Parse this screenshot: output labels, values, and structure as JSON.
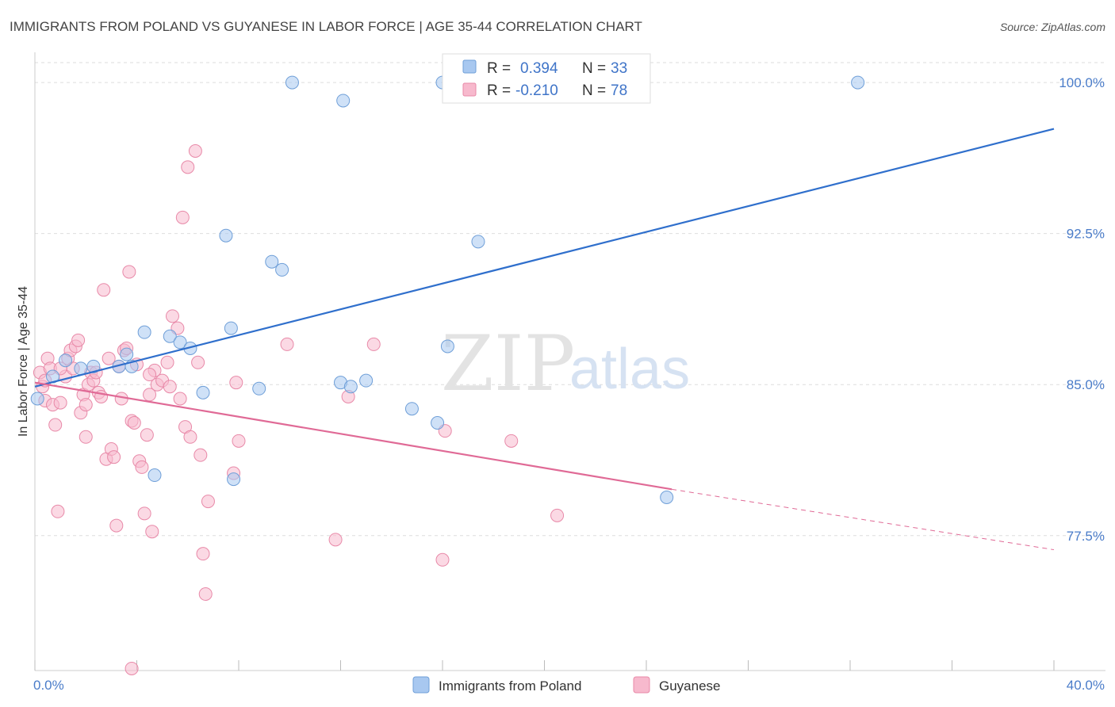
{
  "header": {
    "title": "IMMIGRANTS FROM POLAND VS GUYANESE IN LABOR FORCE | AGE 35-44 CORRELATION CHART",
    "source": "Source: ZipAtlas.com"
  },
  "watermark": {
    "zip": "ZIP",
    "atlas": "atlas"
  },
  "legend_box": {
    "rows": [
      {
        "r_label": "R =",
        "r_value": "0.394",
        "n_label": "N =",
        "n_value": "33"
      },
      {
        "r_label": "R =",
        "r_value": "-0.210",
        "n_label": "N =",
        "n_value": "78"
      }
    ]
  },
  "colors": {
    "poland_fill": "#a8c8f0",
    "poland_stroke": "#6f9fd8",
    "poland_line": "#2f6fcc",
    "guyanese_fill": "#f7b9cd",
    "guyanese_stroke": "#e889a8",
    "guyanese_line": "#e06a96"
  },
  "chart_data": {
    "type": "scatter",
    "title": "IMMIGRANTS FROM POLAND VS GUYANESE IN LABOR FORCE | AGE 35-44 CORRELATION CHART",
    "xlabel": "",
    "ylabel": "In Labor Force | Age 35-44",
    "xlim": [
      0,
      40
    ],
    "ylim": [
      70.8,
      101.5
    ],
    "x_tick_labels": [
      "0.0%",
      "40.0%"
    ],
    "y_ticks": [
      77.5,
      85.0,
      92.5,
      100.0
    ],
    "y_tick_labels": [
      "77.5%",
      "85.0%",
      "92.5%",
      "100.0%"
    ],
    "grid": "horizontal dashed",
    "legend_position": "bottom-center",
    "series": [
      {
        "name": "Immigrants from Poland",
        "color": "#a8c8f0",
        "points": [
          [
            0.1,
            84.3
          ],
          [
            0.7,
            85.4
          ],
          [
            1.2,
            86.2
          ],
          [
            1.8,
            85.8
          ],
          [
            2.3,
            85.9
          ],
          [
            3.3,
            85.9
          ],
          [
            3.6,
            86.5
          ],
          [
            3.8,
            85.9
          ],
          [
            4.3,
            87.6
          ],
          [
            4.7,
            80.5
          ],
          [
            5.3,
            87.4
          ],
          [
            5.7,
            87.1
          ],
          [
            6.1,
            86.8
          ],
          [
            6.6,
            84.6
          ],
          [
            7.5,
            92.4
          ],
          [
            7.8,
            80.3
          ],
          [
            7.7,
            87.8
          ],
          [
            8.8,
            84.8
          ],
          [
            9.3,
            91.1
          ],
          [
            9.7,
            90.7
          ],
          [
            10.1,
            100.0
          ],
          [
            12.0,
            85.1
          ],
          [
            12.1,
            99.1
          ],
          [
            12.4,
            84.9
          ],
          [
            13.0,
            85.2
          ],
          [
            14.8,
            83.8
          ],
          [
            15.8,
            83.1
          ],
          [
            16.0,
            100.0
          ],
          [
            16.2,
            86.9
          ],
          [
            17.0,
            100.0
          ],
          [
            17.4,
            92.1
          ],
          [
            24.8,
            79.4
          ],
          [
            32.3,
            100.0
          ]
        ]
      },
      {
        "name": "Guyanese",
        "color": "#f7b9cd",
        "points": [
          [
            0.2,
            85.6
          ],
          [
            0.3,
            84.9
          ],
          [
            0.4,
            84.2
          ],
          [
            0.5,
            86.3
          ],
          [
            0.6,
            85.8
          ],
          [
            0.7,
            84.0
          ],
          [
            0.8,
            83.0
          ],
          [
            0.9,
            78.7
          ],
          [
            1.0,
            84.1
          ],
          [
            1.2,
            85.4
          ],
          [
            1.3,
            86.3
          ],
          [
            1.4,
            86.7
          ],
          [
            1.5,
            85.8
          ],
          [
            1.6,
            86.9
          ],
          [
            1.7,
            87.2
          ],
          [
            1.8,
            83.6
          ],
          [
            1.9,
            84.5
          ],
          [
            2.0,
            82.4
          ],
          [
            2.1,
            85.0
          ],
          [
            2.2,
            85.6
          ],
          [
            2.3,
            85.2
          ],
          [
            2.4,
            85.6
          ],
          [
            2.5,
            84.6
          ],
          [
            2.6,
            84.4
          ],
          [
            2.7,
            89.7
          ],
          [
            2.8,
            81.3
          ],
          [
            2.9,
            86.3
          ],
          [
            3.0,
            81.8
          ],
          [
            3.1,
            81.4
          ],
          [
            3.2,
            78.0
          ],
          [
            3.3,
            85.9
          ],
          [
            3.4,
            84.3
          ],
          [
            3.5,
            86.7
          ],
          [
            3.6,
            86.8
          ],
          [
            3.7,
            90.6
          ],
          [
            3.8,
            83.2
          ],
          [
            3.9,
            83.1
          ],
          [
            4.0,
            86.0
          ],
          [
            4.1,
            81.2
          ],
          [
            4.2,
            80.9
          ],
          [
            4.3,
            78.6
          ],
          [
            4.4,
            82.5
          ],
          [
            4.5,
            84.5
          ],
          [
            4.6,
            77.7
          ],
          [
            4.7,
            85.7
          ],
          [
            4.8,
            85.0
          ],
          [
            5.0,
            85.2
          ],
          [
            5.2,
            86.1
          ],
          [
            5.3,
            84.9
          ],
          [
            5.4,
            88.4
          ],
          [
            5.6,
            87.8
          ],
          [
            5.7,
            84.3
          ],
          [
            5.8,
            93.3
          ],
          [
            5.9,
            82.9
          ],
          [
            6.0,
            95.8
          ],
          [
            6.1,
            82.4
          ],
          [
            6.3,
            96.6
          ],
          [
            6.4,
            86.1
          ],
          [
            6.5,
            81.5
          ],
          [
            6.6,
            76.6
          ],
          [
            6.7,
            74.6
          ],
          [
            6.8,
            79.2
          ],
          [
            7.8,
            80.6
          ],
          [
            7.9,
            85.1
          ],
          [
            8.0,
            82.2
          ],
          [
            9.9,
            87.0
          ],
          [
            11.8,
            77.3
          ],
          [
            12.3,
            84.4
          ],
          [
            13.3,
            87.0
          ],
          [
            16.0,
            76.3
          ],
          [
            16.1,
            82.7
          ],
          [
            18.7,
            82.2
          ],
          [
            20.5,
            78.5
          ],
          [
            3.8,
            70.9
          ],
          [
            1.0,
            85.8
          ],
          [
            2.0,
            84.0
          ],
          [
            4.5,
            85.5
          ],
          [
            0.4,
            85.2
          ]
        ]
      }
    ],
    "trend_lines": [
      {
        "series": "Immigrants from Poland",
        "from": [
          0,
          84.9
        ],
        "to": [
          40,
          97.7
        ]
      },
      {
        "series": "Guyanese",
        "from": [
          0,
          85.1
        ],
        "to": [
          25,
          79.8
        ],
        "dashed_to": [
          40,
          76.8
        ]
      }
    ]
  }
}
